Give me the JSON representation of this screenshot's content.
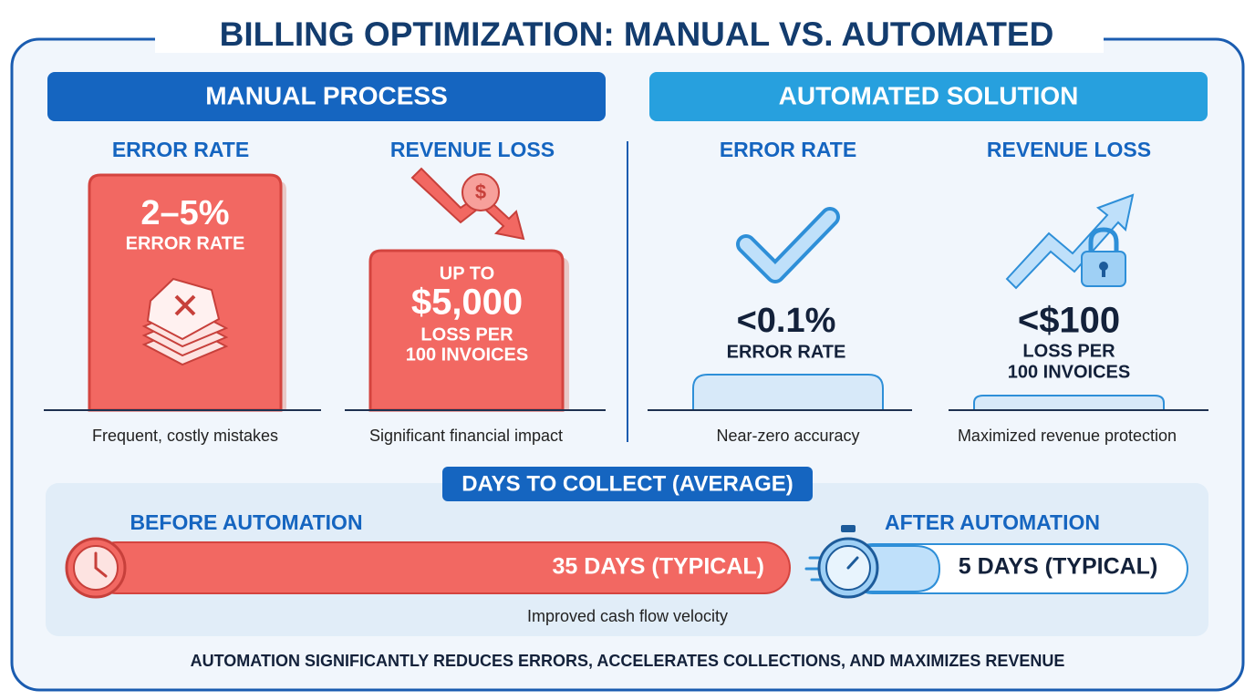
{
  "title": "BILLING OPTIMIZATION: MANUAL VS. AUTOMATED",
  "manual": {
    "header": "MANUAL PROCESS",
    "error_rate": {
      "heading": "ERROR RATE",
      "value": "2–5%",
      "label": "ERROR RATE",
      "caption": "Frequent, costly mistakes"
    },
    "revenue_loss": {
      "heading": "REVENUE LOSS",
      "prefix": "UP TO",
      "value": "$5,000",
      "label_lines": [
        "LOSS PER",
        "100 INVOICES"
      ],
      "caption": "Significant financial impact"
    }
  },
  "automated": {
    "header": "AUTOMATED SOLUTION",
    "error_rate": {
      "heading": "ERROR RATE",
      "value": "<0.1%",
      "label": "ERROR RATE",
      "caption": "Near-zero accuracy"
    },
    "revenue_loss": {
      "heading": "REVENUE LOSS",
      "value": "<$100",
      "label_lines": [
        "LOSS PER",
        "100 INVOICES"
      ],
      "caption": "Maximized revenue protection"
    }
  },
  "days_to_collect": {
    "heading": "DAYS TO COLLECT (AVERAGE)",
    "before": {
      "label": "BEFORE AUTOMATION",
      "value": "35 DAYS (TYPICAL)"
    },
    "after": {
      "label": "AFTER AUTOMATION",
      "value": "5 DAYS (TYPICAL)"
    },
    "caption": "Improved cash flow velocity"
  },
  "footer": "AUTOMATION SIGNIFICANTLY REDUCES ERRORS, ACCELERATES COLLECTIONS, AND MAXIMIZES REVENUE"
}
